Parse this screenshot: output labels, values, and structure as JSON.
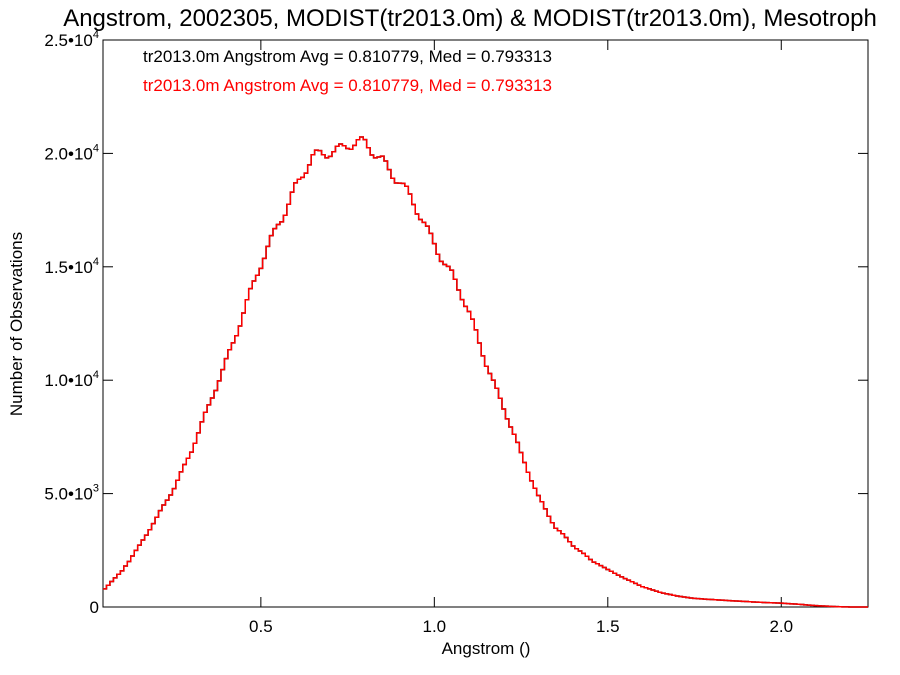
{
  "chart_data": {
    "type": "line",
    "title": "Angstrom, 2002305, MODIST(tr2013.0m) & MODIST(tr2013.0m), Mesotroph",
    "xlabel": "Angstrom ()",
    "ylabel": "Number of Observations",
    "xlim": [
      0.045,
      2.25
    ],
    "ylim": [
      0,
      25000
    ],
    "grid": false,
    "x_ticks": [
      {
        "value": 0.5,
        "label": "0.5"
      },
      {
        "value": 1.0,
        "label": "1.0"
      },
      {
        "value": 1.5,
        "label": "1.5"
      },
      {
        "value": 2.0,
        "label": "2.0"
      }
    ],
    "y_ticks": [
      {
        "value": 0,
        "mant": "0",
        "exp": ""
      },
      {
        "value": 5000,
        "mant": "5.0•10",
        "exp": "3"
      },
      {
        "value": 10000,
        "mant": "1.0•10",
        "exp": "4"
      },
      {
        "value": 15000,
        "mant": "1.5•10",
        "exp": "4"
      },
      {
        "value": 20000,
        "mant": "2.0•10",
        "exp": "4"
      },
      {
        "value": 25000,
        "mant": "2.5•10",
        "exp": "4"
      }
    ],
    "annotations": [
      {
        "text": "tr2013.0m Angstrom Avg = 0.810779, Med = 0.793313",
        "color": "#000000"
      },
      {
        "text": "tr2013.0m Angstrom Avg = 0.810779, Med = 0.793313",
        "color": "#ff0000"
      }
    ],
    "series": [
      {
        "color_black": "#000000",
        "color_red": "#ff0000",
        "x": [
          0.05,
          0.1,
          0.15,
          0.2,
          0.25,
          0.3,
          0.35,
          0.4,
          0.45,
          0.5,
          0.55,
          0.6,
          0.65,
          0.7,
          0.75,
          0.8,
          0.85,
          0.9,
          0.95,
          1.0,
          1.05,
          1.1,
          1.15,
          1.2,
          1.25,
          1.3,
          1.35,
          1.4,
          1.45,
          1.5,
          1.55,
          1.6,
          1.65,
          1.7,
          1.75,
          1.8,
          1.85,
          1.9,
          1.95,
          2.0,
          2.05,
          2.1,
          2.15,
          2.2,
          2.25
        ],
        "y": [
          800,
          1600,
          2700,
          3900,
          5300,
          6900,
          8800,
          10900,
          13000,
          15000,
          17000,
          18500,
          19700,
          20200,
          20400,
          20300,
          19800,
          18800,
          17400,
          16100,
          14700,
          12900,
          10800,
          8800,
          6700,
          4900,
          3500,
          2700,
          2100,
          1650,
          1250,
          900,
          650,
          480,
          380,
          330,
          280,
          240,
          200,
          170,
          120,
          60,
          20,
          0,
          0
        ]
      }
    ]
  }
}
